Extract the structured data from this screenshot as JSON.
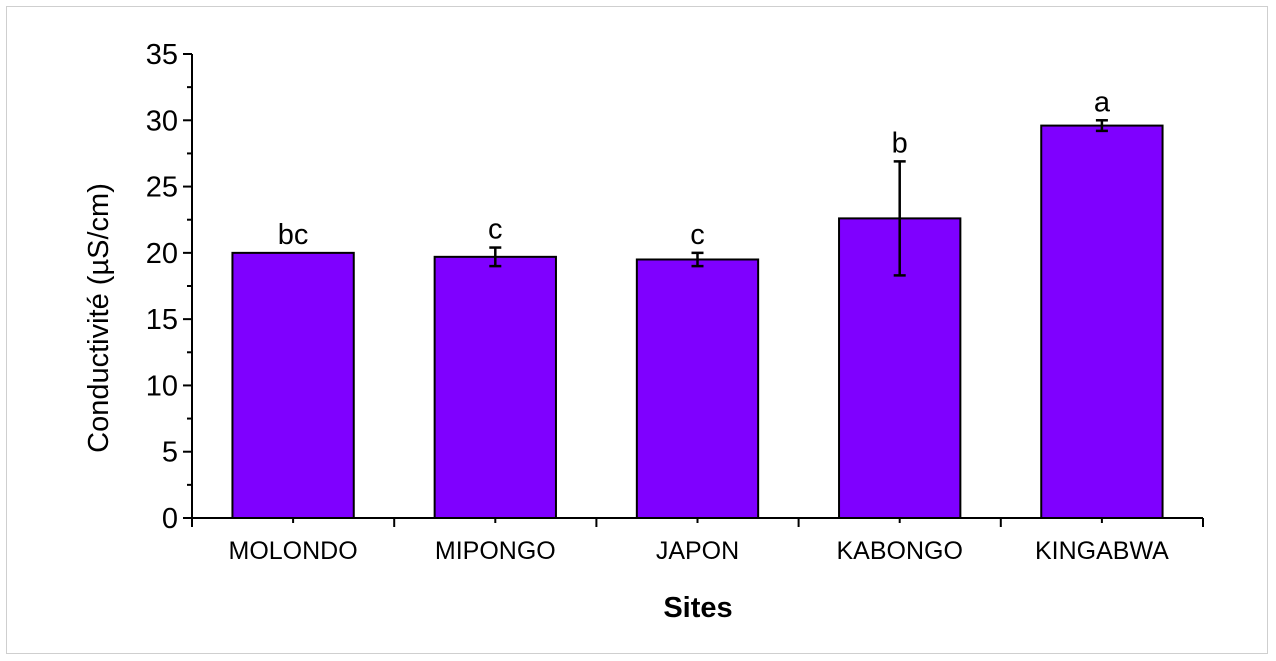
{
  "chart_data": {
    "type": "bar",
    "title": "",
    "xlabel": "Sites",
    "ylabel": "Conductivité (µS/cm)",
    "ylim": [
      0,
      35
    ],
    "yticks": [
      0,
      5,
      10,
      15,
      20,
      25,
      30,
      35
    ],
    "categories": [
      "MOLONDO",
      "MIPONGO",
      "JAPON",
      "KABONGO",
      "KINGABWA"
    ],
    "values": [
      20.0,
      19.7,
      19.5,
      22.6,
      29.6
    ],
    "errors": [
      0.0,
      0.7,
      0.5,
      4.3,
      0.4
    ],
    "letters": [
      "bc",
      "c",
      "c",
      "b",
      "a"
    ],
    "bar_color": "#7f00ff",
    "grid": false,
    "legend": "none"
  }
}
